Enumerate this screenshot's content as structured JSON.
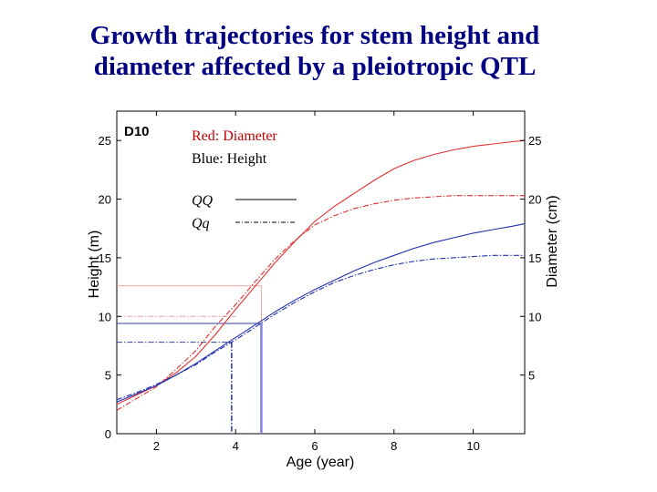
{
  "slide": {
    "title_line1": "Growth trajectories for stem height and",
    "title_line2": "diameter affected by a pleiotropic QTL"
  },
  "chart_data": {
    "type": "line",
    "panel_label": "D10",
    "xlabel": "Age (year)",
    "ylabel": "Height (m)",
    "y2label": "Diameter (cm)",
    "xlim": [
      1,
      11.3
    ],
    "ylim": [
      0,
      27.5
    ],
    "y2lim": [
      0,
      27.5
    ],
    "x_ticks": [
      2,
      4,
      6,
      8,
      10
    ],
    "y_ticks": [
      0,
      5,
      10,
      15,
      20,
      25
    ],
    "y2_ticks": [
      5,
      10,
      15,
      20,
      25
    ],
    "grid": false,
    "legend": {
      "color_line1": "Red: Diameter",
      "color_line2": "Blue: Height",
      "qq_label": "QQ",
      "qq_label2": "Qq",
      "position": "top-left"
    },
    "colors": {
      "red": "#e03030",
      "blue": "#2030b0",
      "guide_red": "#f0a0a0",
      "guide_blue": "#3040a0",
      "vertical_blue": "#8080e0",
      "title": "#000080",
      "legend_red": "#c00000"
    },
    "series": [
      {
        "name": "Red: Diameter QQ",
        "color": "red",
        "dash": "solid",
        "axis": "right",
        "x": [
          1.0,
          1.5,
          2.0,
          2.5,
          3.0,
          3.5,
          4.0,
          4.5,
          5.0,
          5.5,
          6.0,
          6.5,
          7.0,
          7.5,
          8.0,
          8.5,
          9.0,
          9.5,
          10.0,
          10.5,
          11.0,
          11.3
        ],
        "y": [
          2.5,
          3.3,
          4.1,
          5.2,
          6.6,
          8.5,
          10.6,
          12.6,
          14.6,
          16.4,
          18.1,
          19.4,
          20.5,
          21.6,
          22.6,
          23.3,
          23.8,
          24.2,
          24.5,
          24.7,
          24.9,
          25.0
        ]
      },
      {
        "name": "Red: Diameter Qq",
        "color": "red",
        "dash": "dashdot",
        "axis": "right",
        "x": [
          1.0,
          1.5,
          2.0,
          2.5,
          3.0,
          3.5,
          4.0,
          4.5,
          5.0,
          5.5,
          6.0,
          6.5,
          7.0,
          7.5,
          8.0,
          8.5,
          9.0,
          9.5,
          10.0,
          10.5,
          11.0,
          11.3
        ],
        "y": [
          2.0,
          3.0,
          4.0,
          5.5,
          7.1,
          9.2,
          11.0,
          13.0,
          14.9,
          16.5,
          17.8,
          18.6,
          19.2,
          19.6,
          19.9,
          20.1,
          20.2,
          20.3,
          20.3,
          20.3,
          20.3,
          20.3
        ]
      },
      {
        "name": "Blue: Height QQ",
        "color": "blue",
        "dash": "solid",
        "axis": "left",
        "x": [
          1.0,
          1.5,
          2.0,
          2.5,
          3.0,
          3.5,
          4.0,
          4.5,
          5.0,
          5.5,
          6.0,
          6.5,
          7.0,
          7.5,
          8.0,
          8.5,
          9.0,
          9.5,
          10.0,
          10.5,
          11.0,
          11.3
        ],
        "y": [
          2.7,
          3.4,
          4.1,
          5.0,
          6.0,
          7.1,
          8.2,
          9.3,
          10.4,
          11.4,
          12.3,
          13.1,
          13.9,
          14.6,
          15.2,
          15.8,
          16.3,
          16.7,
          17.1,
          17.4,
          17.7,
          17.9
        ]
      },
      {
        "name": "Blue: Height Qq",
        "color": "blue",
        "dash": "dashdot",
        "axis": "left",
        "x": [
          1.0,
          1.5,
          2.0,
          2.5,
          3.0,
          3.5,
          4.0,
          4.5,
          5.0,
          5.5,
          6.0,
          6.5,
          7.0,
          7.5,
          8.0,
          8.5,
          9.0,
          9.5,
          10.0,
          10.5,
          11.0,
          11.3
        ],
        "y": [
          2.9,
          3.5,
          4.2,
          5.0,
          5.9,
          7.0,
          8.0,
          9.1,
          10.2,
          11.2,
          12.1,
          12.9,
          13.5,
          14.0,
          14.4,
          14.7,
          14.9,
          15.0,
          15.1,
          15.2,
          15.2,
          15.2
        ]
      }
    ],
    "reference_lines": [
      {
        "name": "red-guide-horizontal",
        "color": "guide_red",
        "dash": "solid",
        "axis": "left",
        "from": [
          1.0,
          12.6
        ],
        "to": [
          4.65,
          12.6
        ]
      },
      {
        "name": "red-guide-vertical",
        "color": "guide_red",
        "dash": "solid",
        "axis": "left",
        "from": [
          4.65,
          12.6
        ],
        "to": [
          4.65,
          9.4
        ]
      },
      {
        "name": "red-dashdot-guide",
        "color": "guide_red",
        "dash": "dashdot",
        "axis": "left",
        "from": [
          1.0,
          10.0
        ],
        "to": [
          4.0,
          10.0
        ]
      },
      {
        "name": "blue-guide-horizontal",
        "color": "guide_blue",
        "dash": "solid",
        "axis": "left",
        "from": [
          1.0,
          9.4
        ],
        "to": [
          4.65,
          9.4
        ]
      },
      {
        "name": "blue-guide-vertical",
        "color": "vertical_blue",
        "dash": "solid",
        "axis": "left",
        "width": 2.5,
        "from": [
          4.65,
          9.4
        ],
        "to": [
          4.65,
          0
        ]
      },
      {
        "name": "blue-dashdot-guide-horizontal",
        "color": "guide_blue",
        "dash": "dashdot",
        "axis": "left",
        "from": [
          1.0,
          7.8
        ],
        "to": [
          3.9,
          7.8
        ]
      },
      {
        "name": "blue-dashdot-guide-vertical",
        "color": "guide_blue",
        "dash": "dashdot",
        "axis": "left",
        "width": 1.6,
        "from": [
          3.9,
          7.8
        ],
        "to": [
          3.9,
          0
        ]
      }
    ]
  }
}
